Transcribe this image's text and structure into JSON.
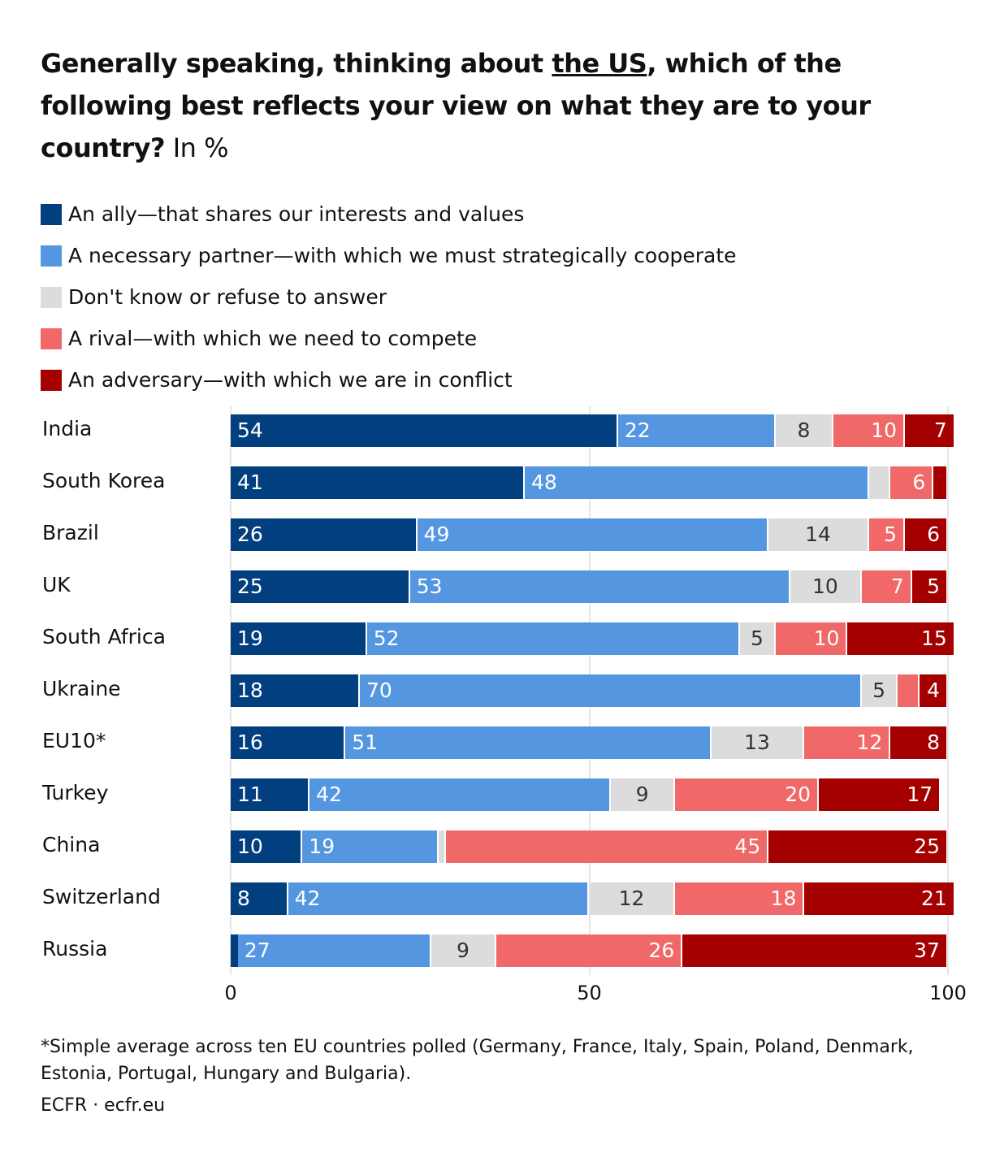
{
  "title": {
    "part1": "Generally speaking, thinking about ",
    "underlined": "the US",
    "part2": ", which of the following best reflects your view on what they are to your country?",
    "suffix": " In %"
  },
  "footnote": "*Simple average across ten EU countries polled (Germany, France, Italy, Spain, Poland, Denmark, Estonia, Portugal, Hungary and Bulgaria).",
  "source": "ECFR · ecfr.eu",
  "chart_data": {
    "type": "bar",
    "orientation": "horizontal",
    "stacked": true,
    "title": "Generally speaking, thinking about the US, which of the following best reflects your view on what they are to your country? In %",
    "xlim": [
      0,
      100
    ],
    "xticks": [
      "0",
      "50",
      "100"
    ],
    "legend_placement": "top-left",
    "categories": [
      "India",
      "South Korea",
      "Brazil",
      "UK",
      "South Africa",
      "Ukraine",
      "EU10*",
      "Turkey",
      "China",
      "Switzerland",
      "Russia"
    ],
    "series": [
      {
        "name": "An ally—that shares our interests and values",
        "color": "#023f7f",
        "align": "left",
        "values": [
          54,
          41,
          26,
          25,
          19,
          18,
          16,
          11,
          10,
          8,
          1
        ],
        "labels": [
          "54",
          "41",
          "26",
          "25",
          "19",
          "18",
          "16",
          "11",
          "10",
          "8",
          ""
        ]
      },
      {
        "name": "A necessary partner—with which we must strategically cooperate",
        "color": "#5596e0",
        "align": "left",
        "values": [
          22,
          48,
          49,
          53,
          52,
          70,
          51,
          42,
          19,
          42,
          27
        ],
        "labels": [
          "22",
          "48",
          "49",
          "53",
          "52",
          "70",
          "51",
          "42",
          "19",
          "42",
          "27"
        ]
      },
      {
        "name": "Don't know or refuse to answer",
        "color": "#dcdcdc",
        "align": "center",
        "values": [
          8,
          3,
          14,
          10,
          5,
          5,
          13,
          9,
          1,
          12,
          9
        ],
        "labels": [
          "8",
          "",
          "14",
          "10",
          "5",
          "5",
          "13",
          "9",
          "",
          "12",
          "9"
        ]
      },
      {
        "name": "A rival—with which we need to compete",
        "color": "#f06868",
        "align": "right",
        "values": [
          10,
          6,
          5,
          7,
          10,
          3,
          12,
          20,
          45,
          18,
          26
        ],
        "labels": [
          "10",
          "6",
          "5",
          "7",
          "10",
          "",
          "12",
          "20",
          "45",
          "18",
          "26"
        ]
      },
      {
        "name": "An adversary—with which we are in conflict",
        "color": "#a50000",
        "align": "right",
        "values": [
          7,
          2,
          6,
          5,
          15,
          4,
          8,
          17,
          25,
          21,
          37
        ],
        "labels": [
          "7",
          "",
          "6",
          "5",
          "15",
          "4",
          "8",
          "17",
          "25",
          "21",
          "37"
        ]
      }
    ]
  }
}
